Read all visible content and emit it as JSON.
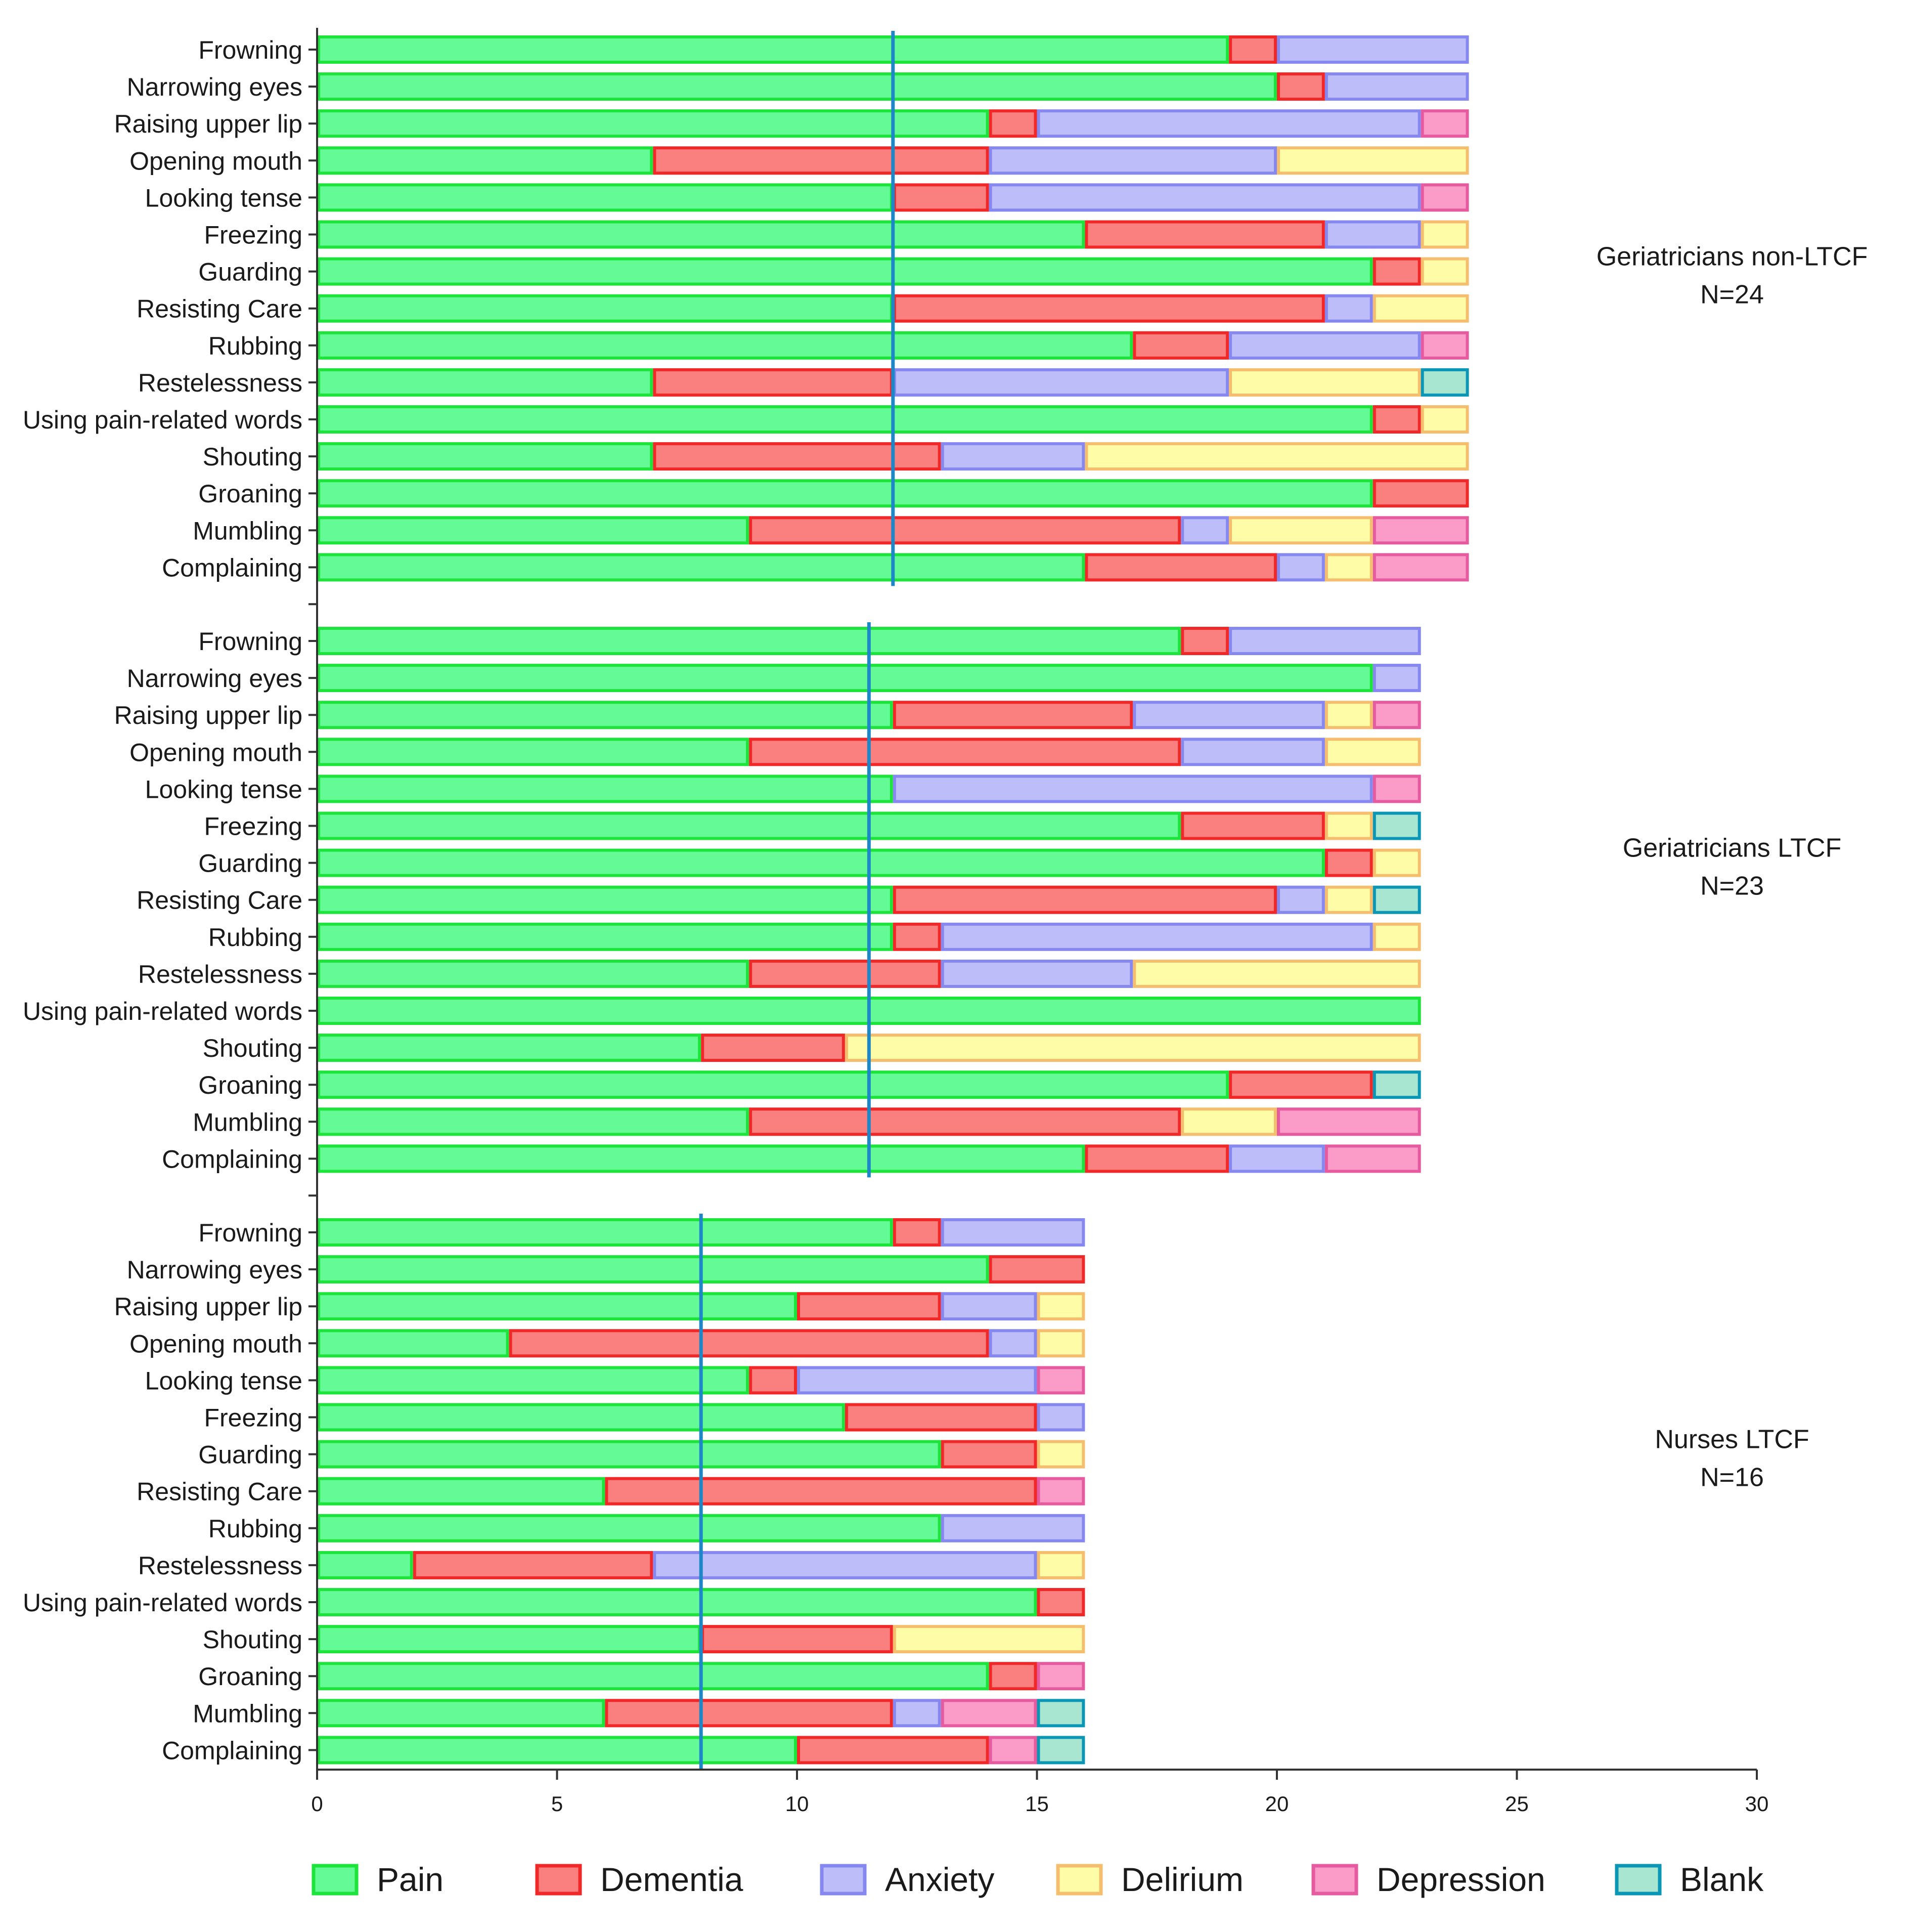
{
  "chart_data": {
    "type": "bar",
    "orientation": "horizontal",
    "stacked": true,
    "categories": [
      "Frowning",
      "Narrowing eyes",
      "Raising upper lip",
      "Opening mouth",
      "Looking tense",
      "Freezing",
      "Guarding",
      "Resisting Care",
      "Rubbing",
      "Restelessness",
      "Using pain-related words",
      "Shouting",
      "Groaning",
      "Mumbling",
      "Complaining"
    ],
    "xlim": [
      0,
      30
    ],
    "xticks": [
      0,
      5,
      10,
      15,
      20,
      25,
      30
    ],
    "xlabel": "",
    "ylabel": "",
    "legend_position": "bottom",
    "series_names": [
      "Pain",
      "Dementia",
      "Anxiety",
      "Delirium",
      "Depression",
      "Blank"
    ],
    "colors": {
      "Pain": {
        "fill": "#64FA96",
        "stroke": "#1DE43A"
      },
      "Dementia": {
        "fill": "#FA8080",
        "stroke": "#F02828"
      },
      "Anxiety": {
        "fill": "#BDBDFA",
        "stroke": "#8787F0"
      },
      "Delirium": {
        "fill": "#FFFCA8",
        "stroke": "#F5BE6E"
      },
      "Depression": {
        "fill": "#FA9BC8",
        "stroke": "#E65AA0"
      },
      "Blank": {
        "fill": "#A8E6D2",
        "stroke": "#0A96B4"
      },
      "reference_line": "#1E87C8",
      "axis": "#333333"
    },
    "groups": [
      {
        "label_line1": "Geriatricians non-LTCF",
        "label_line2": "N=24",
        "reference_value": 12,
        "series": [
          {
            "name": "Pain",
            "values": [
              19,
              20,
              14,
              7,
              12,
              16,
              22,
              12,
              17,
              7,
              22,
              7,
              22,
              9,
              16
            ]
          },
          {
            "name": "Dementia",
            "values": [
              1,
              1,
              1,
              7,
              2,
              5,
              1,
              9,
              2,
              5,
              1,
              6,
              2,
              9,
              4
            ]
          },
          {
            "name": "Anxiety",
            "values": [
              4,
              3,
              8,
              6,
              9,
              2,
              0,
              1,
              4,
              7,
              0,
              3,
              0,
              1,
              1
            ]
          },
          {
            "name": "Delirium",
            "values": [
              0,
              0,
              0,
              4,
              0,
              1,
              1,
              2,
              0,
              4,
              1,
              8,
              0,
              3,
              1
            ]
          },
          {
            "name": "Depression",
            "values": [
              0,
              0,
              1,
              0,
              1,
              0,
              0,
              0,
              1,
              0,
              0,
              0,
              0,
              2,
              2
            ]
          },
          {
            "name": "Blank",
            "values": [
              0,
              0,
              0,
              0,
              0,
              0,
              0,
              0,
              0,
              1,
              0,
              0,
              0,
              0,
              0
            ]
          }
        ]
      },
      {
        "label_line1": "Geriatricians LTCF",
        "label_line2": "N=23",
        "reference_value": 11.5,
        "series": [
          {
            "name": "Pain",
            "values": [
              18,
              22,
              12,
              9,
              12,
              18,
              21,
              12,
              12,
              9,
              23,
              8,
              19,
              9,
              16
            ]
          },
          {
            "name": "Dementia",
            "values": [
              1,
              0,
              5,
              9,
              0,
              3,
              1,
              8,
              1,
              4,
              0,
              3,
              3,
              9,
              3
            ]
          },
          {
            "name": "Anxiety",
            "values": [
              4,
              1,
              4,
              3,
              10,
              0,
              0,
              1,
              9,
              4,
              0,
              0,
              0,
              0,
              2
            ]
          },
          {
            "name": "Delirium",
            "values": [
              0,
              0,
              1,
              2,
              0,
              1,
              1,
              1,
              1,
              6,
              0,
              12,
              0,
              2,
              0
            ]
          },
          {
            "name": "Depression",
            "values": [
              0,
              0,
              1,
              0,
              1,
              0,
              0,
              0,
              0,
              0,
              0,
              0,
              0,
              3,
              2
            ]
          },
          {
            "name": "Blank",
            "values": [
              0,
              0,
              0,
              0,
              0,
              1,
              0,
              1,
              0,
              0,
              0,
              0,
              1,
              0,
              0
            ]
          }
        ]
      },
      {
        "label_line1": "Nurses LTCF",
        "label_line2": "N=16",
        "reference_value": 8,
        "series": [
          {
            "name": "Pain",
            "values": [
              12,
              14,
              10,
              4,
              9,
              11,
              13,
              6,
              13,
              2,
              15,
              8,
              14,
              6,
              10
            ]
          },
          {
            "name": "Dementia",
            "values": [
              1,
              2,
              3,
              10,
              1,
              4,
              2,
              9,
              0,
              5,
              1,
              4,
              1,
              6,
              4
            ]
          },
          {
            "name": "Anxiety",
            "values": [
              3,
              0,
              2,
              1,
              5,
              1,
              0,
              0,
              3,
              8,
              0,
              0,
              0,
              1,
              0
            ]
          },
          {
            "name": "Delirium",
            "values": [
              0,
              0,
              1,
              1,
              0,
              0,
              1,
              0,
              0,
              1,
              0,
              4,
              0,
              0,
              0
            ]
          },
          {
            "name": "Depression",
            "values": [
              0,
              0,
              0,
              0,
              1,
              0,
              0,
              1,
              0,
              0,
              0,
              0,
              1,
              2,
              1
            ]
          },
          {
            "name": "Blank",
            "values": [
              0,
              0,
              0,
              0,
              0,
              0,
              0,
              0,
              0,
              0,
              0,
              0,
              0,
              1,
              1
            ]
          }
        ]
      }
    ]
  }
}
